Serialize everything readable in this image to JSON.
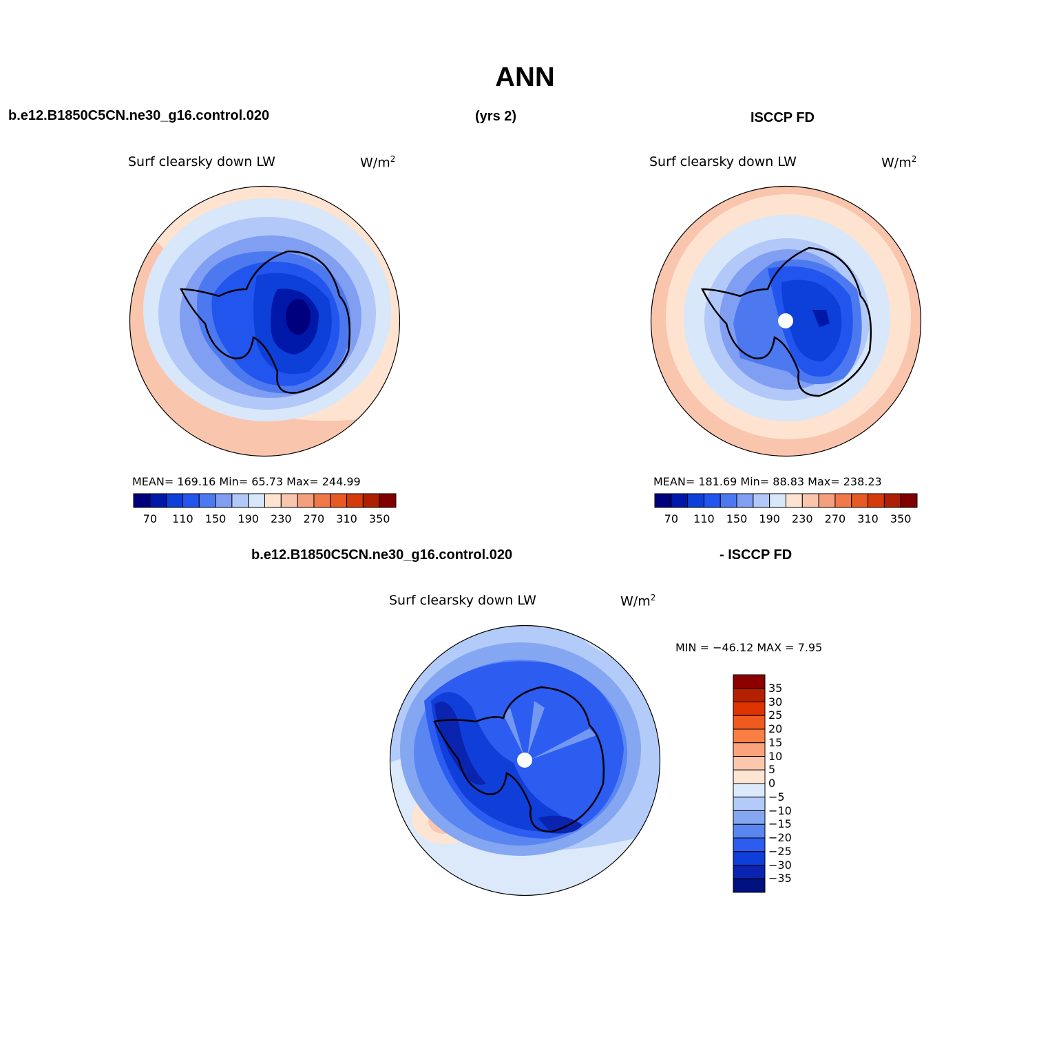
{
  "header": {
    "title": "ANN",
    "case_name": "b.e12.B1850C5CN.ne30_g16.control.020",
    "years": "(yrs 2)",
    "obs_name": "ISCCP FD",
    "diff_case": "b.e12.B1850C5CN.ne30_g16.control.020",
    "diff_obs": "- ISCCP FD"
  },
  "panels": {
    "model": {
      "variable": "Surf clearsky down LW",
      "units": "W/m",
      "units_exp": "2",
      "stats": "MEAN= 169.16   Min=   65.73   Max= 244.99"
    },
    "obs": {
      "variable": "Surf clearsky down LW",
      "units": "W/m",
      "units_exp": "2",
      "stats": "MEAN= 181.69   Min=   88.83   Max= 238.23"
    },
    "diff": {
      "variable": "Surf clearsky down LW",
      "units": "W/m",
      "units_exp": "2",
      "stats": "MIN = −46.12  MAX =    7.95"
    }
  },
  "colorbar_horizontal": {
    "colors": [
      "#00007f",
      "#0018a8",
      "#0d3fd9",
      "#2255ee",
      "#4d79f0",
      "#809ef2",
      "#b2c8f8",
      "#d8e7fa",
      "#fde3d0",
      "#fac5ad",
      "#f49f7e",
      "#f17849",
      "#e75a23",
      "#d43a0a",
      "#ae1f04",
      "#800000"
    ],
    "tick_labels": [
      "70",
      "110",
      "150",
      "190",
      "230",
      "270",
      "310",
      "350"
    ]
  },
  "colorbar_vertical": {
    "colors_top_to_bottom": [
      "#8b0000",
      "#b42000",
      "#dd3300",
      "#f15a1f",
      "#fa7f45",
      "#fca37b",
      "#fdc7ae",
      "#fde5d4",
      "#dce9fa",
      "#b2cbf8",
      "#85a7f2",
      "#5a86f2",
      "#2c5cf0",
      "#0f3fd8",
      "#0a24b0",
      "#00107f"
    ],
    "tick_labels": [
      "35",
      "30",
      "25",
      "20",
      "15",
      "10",
      "5",
      "0",
      "−5",
      "−10",
      "−15",
      "−20",
      "−25",
      "−30",
      "−35"
    ]
  }
}
